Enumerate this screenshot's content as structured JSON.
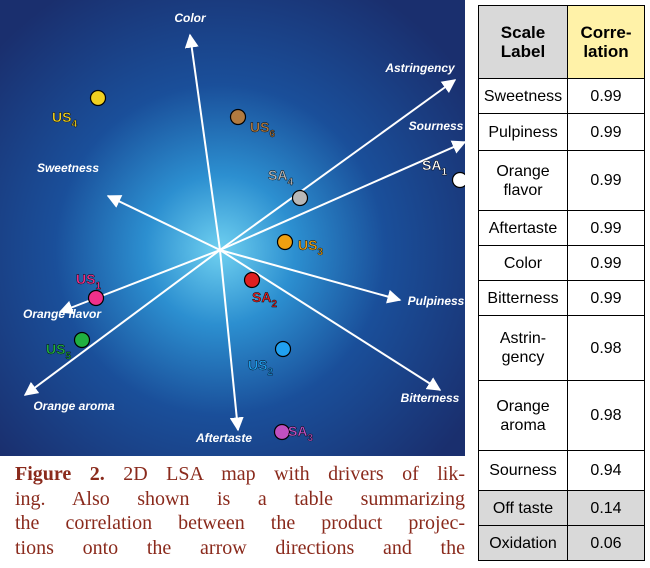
{
  "map": {
    "vectors": [
      "Color",
      "Astringency",
      "Sourness",
      "Sweetness",
      "Pulpiness",
      "Bitterness",
      "Aftertaste",
      "Orange aroma",
      "Orange flavor"
    ],
    "points": [
      {
        "label": "US",
        "sub": "4"
      },
      {
        "label": "US",
        "sub": "6"
      },
      {
        "label": "SA",
        "sub": "4"
      },
      {
        "label": "SA",
        "sub": "1"
      },
      {
        "label": "US",
        "sub": "3"
      },
      {
        "label": "SA",
        "sub": "2"
      },
      {
        "label": "US",
        "sub": "1"
      },
      {
        "label": "US",
        "sub": "5"
      },
      {
        "label": "US",
        "sub": "2"
      },
      {
        "label": "SA",
        "sub": "3"
      }
    ]
  },
  "table": {
    "header": [
      [
        "Scale",
        "Label"
      ],
      [
        "Corre-",
        "lation"
      ]
    ],
    "rows": [
      [
        [
          "Sweetness"
        ],
        [
          "0.99"
        ]
      ],
      [
        [
          "Pulpiness"
        ],
        [
          "0.99"
        ]
      ],
      [
        [
          "Orange",
          "flavor"
        ],
        [
          "0.99"
        ]
      ],
      [
        [
          "Aftertaste"
        ],
        [
          "0.99"
        ]
      ],
      [
        [
          "Color"
        ],
        [
          "0.99"
        ]
      ],
      [
        [
          "Bitterness"
        ],
        [
          "0.99"
        ]
      ],
      [
        [
          "Astrin-",
          "gency"
        ],
        [
          "0.98"
        ]
      ],
      [
        [
          "Orange",
          "aroma"
        ],
        [
          "0.98"
        ]
      ],
      [
        [
          "Sourness"
        ],
        [
          "0.94"
        ]
      ],
      [
        [
          "Off taste"
        ],
        [
          "0.14"
        ]
      ],
      [
        [
          "Oxidation"
        ],
        [
          "0.06"
        ]
      ]
    ]
  },
  "caption": {
    "label": "Figure 2.",
    "lines": [
      "2D LSA map with drivers of lik-",
      "ing. Also shown is a table summarizing",
      "the correlation between the product projec-",
      "tions onto the arrow directions and the"
    ]
  }
}
